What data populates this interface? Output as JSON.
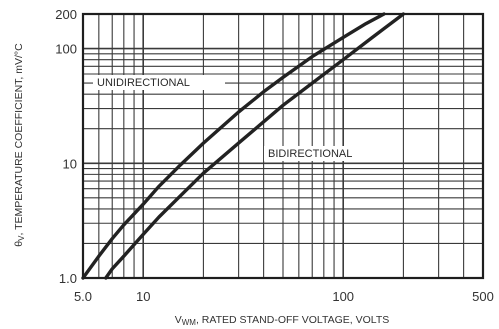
{
  "chart_data": {
    "type": "line",
    "x_scale": "log",
    "y_scale": "log",
    "xlim": [
      5.0,
      500
    ],
    "ylim": [
      1.0,
      200
    ],
    "x_tick_labels": [
      {
        "value": 5.0,
        "label": "5.0"
      },
      {
        "value": 10,
        "label": "10"
      },
      {
        "value": 100,
        "label": "100"
      },
      {
        "value": 500,
        "label": "500"
      }
    ],
    "y_tick_labels": [
      {
        "value": 1.0,
        "label": "1.0"
      },
      {
        "value": 10,
        "label": "10"
      },
      {
        "value": 100,
        "label": "100"
      },
      {
        "value": 200,
        "label": "200"
      }
    ],
    "xlabel": "V",
    "xlabel_sub": "WM",
    "xlabel_rest": ", RATED STAND-OFF VOLTAGE, VOLTS",
    "ylabel": "θ",
    "ylabel_sub": "V",
    "ylabel_rest": ", TEMPERATURE COEFFICIENT, mV/°C",
    "grid": true,
    "series": [
      {
        "name": "UNIDIRECTIONAL",
        "x": [
          5.0,
          6,
          7,
          8,
          10,
          12,
          15,
          20,
          30,
          40,
          50,
          70,
          100,
          130,
          160
        ],
        "y": [
          1.0,
          1.55,
          2.2,
          2.9,
          4.4,
          6.3,
          9.3,
          15,
          28,
          42,
          56,
          85,
          125,
          165,
          200
        ]
      },
      {
        "name": "BIDIRECTIONAL",
        "x": [
          6.5,
          7,
          8,
          10,
          12,
          15,
          20,
          30,
          40,
          50,
          70,
          100,
          140,
          200
        ],
        "y": [
          1.0,
          1.2,
          1.55,
          2.4,
          3.4,
          5.0,
          8.2,
          15,
          23,
          32,
          50,
          80,
          125,
          200
        ]
      }
    ]
  }
}
